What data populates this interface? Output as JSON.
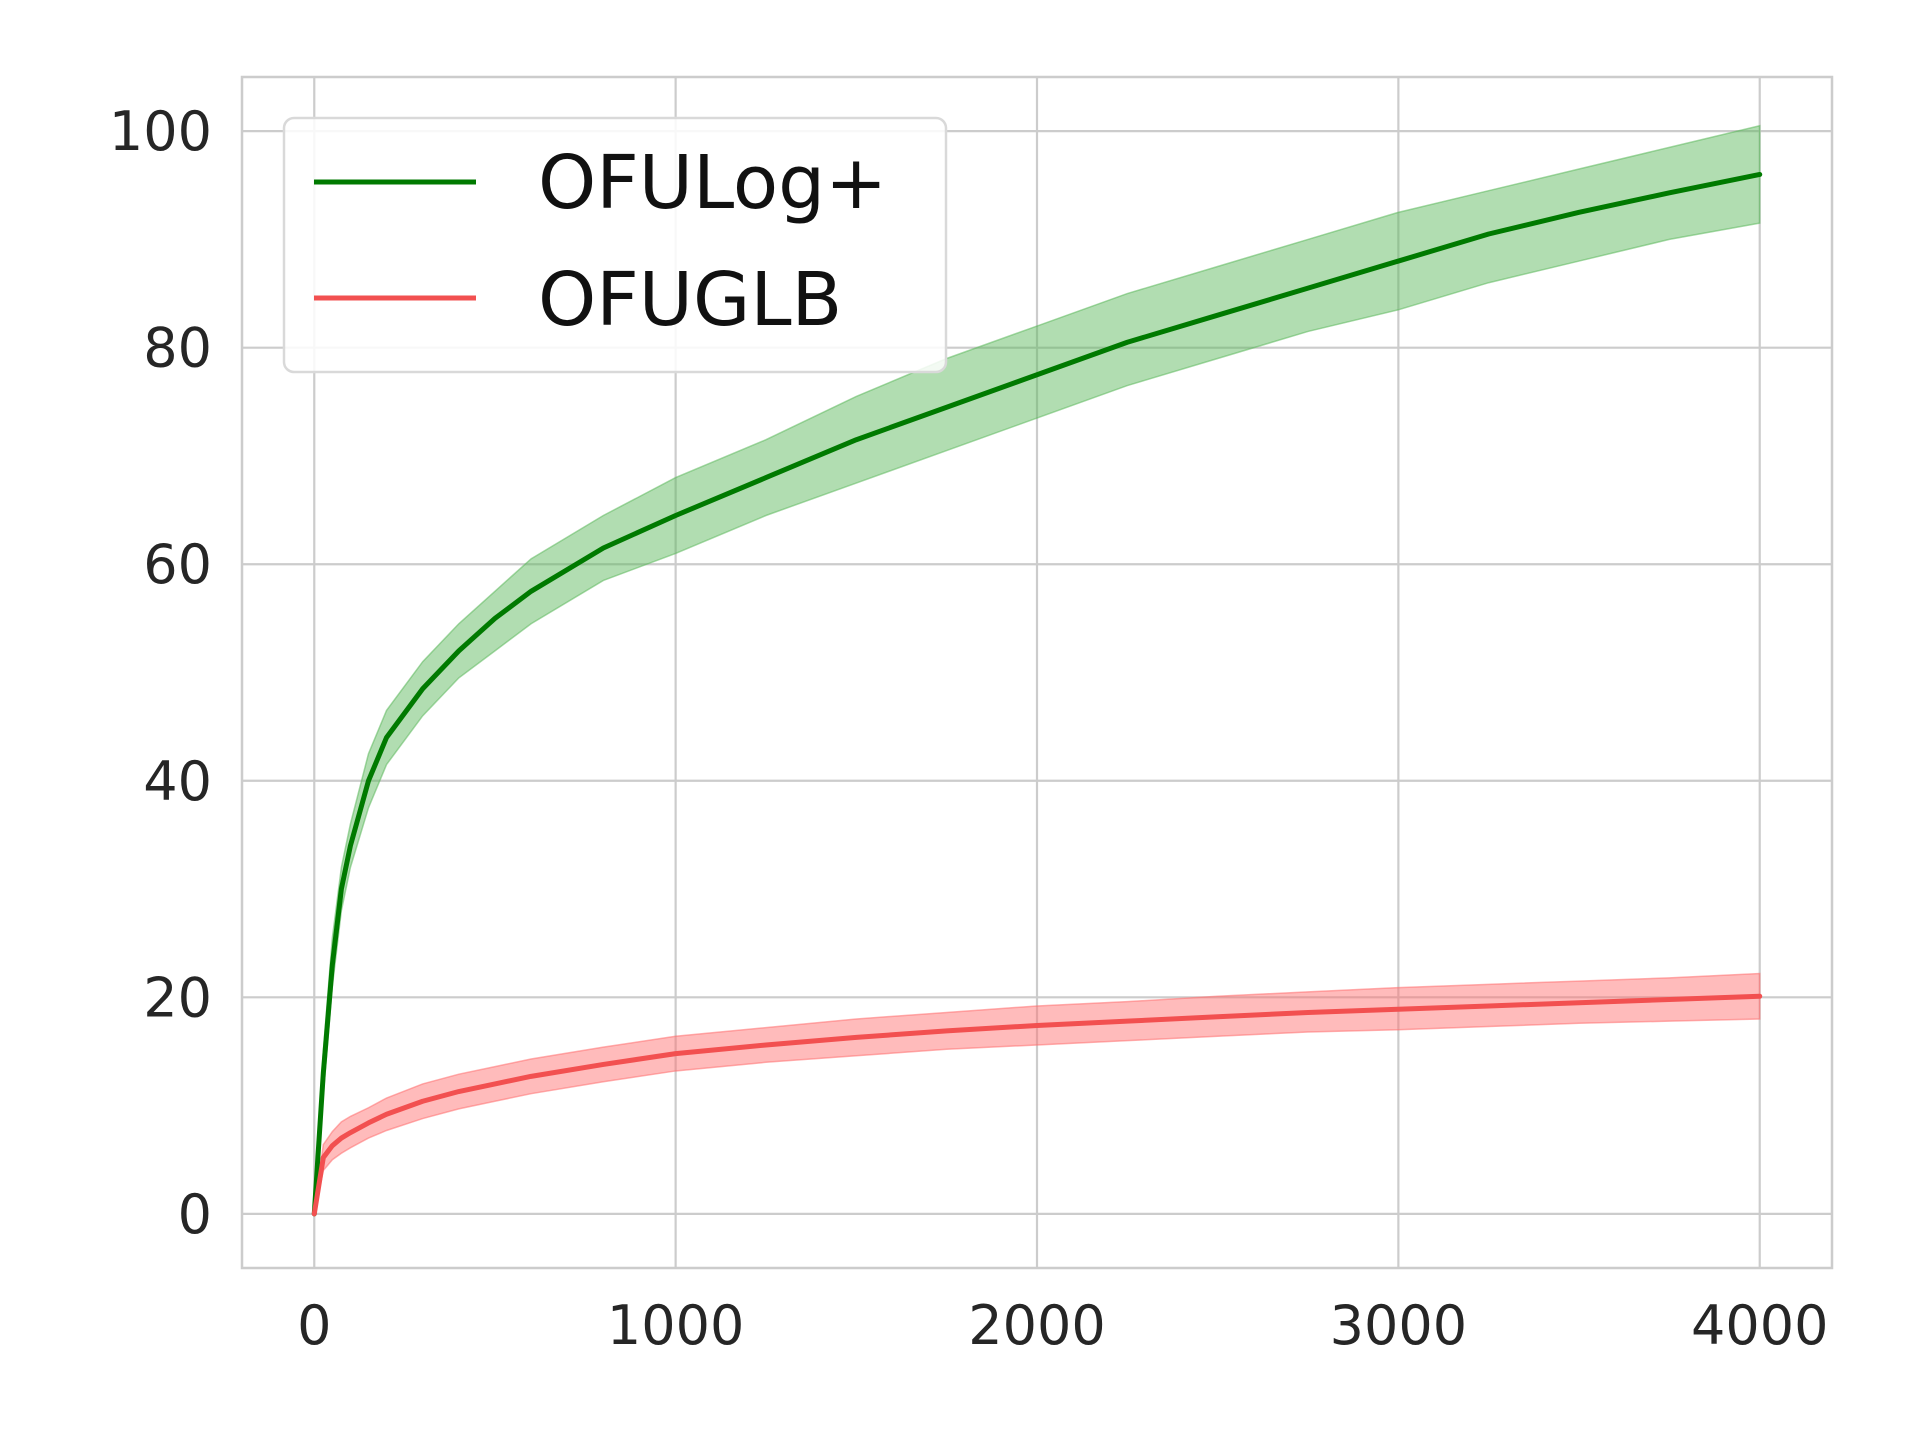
{
  "chart_data": {
    "type": "line",
    "title": "",
    "xlabel": "",
    "ylabel": "",
    "xlim": [
      -200,
      4200
    ],
    "ylim": [
      -5,
      105
    ],
    "xticks": [
      0,
      1000,
      2000,
      3000,
      4000
    ],
    "xtick_labels": [
      "0",
      "1000",
      "2000",
      "3000",
      "4000"
    ],
    "yticks": [
      0,
      20,
      40,
      60,
      80,
      100
    ],
    "ytick_labels": [
      "0",
      "20",
      "40",
      "60",
      "80",
      "100"
    ],
    "grid": true,
    "legend_position": "top-left",
    "x": [
      0,
      25,
      50,
      75,
      100,
      150,
      200,
      300,
      400,
      500,
      600,
      800,
      1000,
      1250,
      1500,
      1750,
      2000,
      2250,
      2500,
      2750,
      3000,
      3250,
      3500,
      3750,
      4000
    ],
    "series": [
      {
        "name": "OFULog+",
        "color": "#007a00",
        "band_color": "#5cb85c",
        "values": [
          0,
          13,
          23,
          30,
          34,
          40,
          44,
          48.5,
          52,
          55,
          57.5,
          61.5,
          64.5,
          68,
          71.5,
          74.5,
          77.5,
          80.5,
          83,
          85.5,
          88,
          90.5,
          92.5,
          94.3,
          96
        ],
        "lower": [
          0,
          11,
          21,
          28,
          32,
          37.5,
          41.5,
          46,
          49.5,
          52,
          54.5,
          58.5,
          61,
          64.5,
          67.5,
          70.5,
          73.5,
          76.5,
          79,
          81.5,
          83.5,
          86,
          88,
          90,
          91.5
        ],
        "upper": [
          0,
          15,
          25.5,
          32,
          36,
          42.5,
          46.5,
          51,
          54.5,
          57.5,
          60.5,
          64.5,
          68,
          71.5,
          75.5,
          79,
          82,
          85,
          87.5,
          90,
          92.5,
          94.5,
          96.5,
          98.5,
          100.5
        ]
      },
      {
        "name": "OFUGLB",
        "color": "#f25050",
        "band_color": "#ff7070",
        "values": [
          0,
          5.2,
          6.3,
          7,
          7.5,
          8.4,
          9.2,
          10.4,
          11.3,
          12,
          12.7,
          13.8,
          14.8,
          15.6,
          16.3,
          16.9,
          17.4,
          17.8,
          18.2,
          18.6,
          18.9,
          19.2,
          19.5,
          19.8,
          20.1
        ],
        "lower": [
          0,
          4,
          5,
          5.6,
          6.1,
          7,
          7.7,
          8.8,
          9.7,
          10.4,
          11.1,
          12.2,
          13.2,
          14,
          14.6,
          15.2,
          15.6,
          16,
          16.4,
          16.8,
          17,
          17.3,
          17.6,
          17.8,
          18
        ],
        "upper": [
          0,
          6.4,
          7.6,
          8.5,
          9,
          9.8,
          10.7,
          12,
          12.9,
          13.6,
          14.3,
          15.4,
          16.4,
          17.2,
          18,
          18.6,
          19.2,
          19.6,
          20.1,
          20.5,
          20.9,
          21.2,
          21.5,
          21.8,
          22.2
        ]
      }
    ]
  }
}
